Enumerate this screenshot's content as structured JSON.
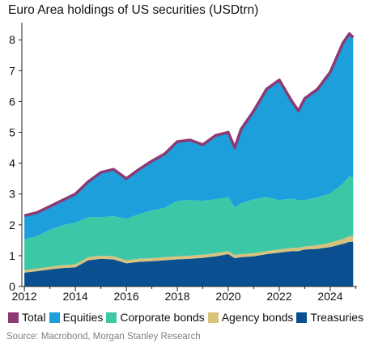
{
  "chart_data": {
    "type": "area",
    "stacked": true,
    "title": "Euro Area holdings of US securities (USDtrn)",
    "source": "Source: Macrobond, Morgan Stanley Research",
    "xlim": [
      2011.9,
      2025.05
    ],
    "ylim": [
      0,
      8.4
    ],
    "x_ticks": [
      2012,
      2014,
      2016,
      2018,
      2020,
      2022,
      2024
    ],
    "y_ticks": [
      0,
      1,
      2,
      3,
      4,
      5,
      6,
      7,
      8
    ],
    "grid": false,
    "legend_position": "bottom",
    "colors": {
      "Total": "#8b3a73",
      "Equities": "#1d9fdc",
      "Corporate bonds": "#3cc8a6",
      "Agency bonds": "#d8c27c",
      "Treasuries": "#0a5091"
    },
    "x": [
      2012.0,
      2012.5,
      2013.0,
      2013.5,
      2014.0,
      2014.5,
      2015.0,
      2015.5,
      2016.0,
      2016.5,
      2017.0,
      2017.5,
      2018.0,
      2018.5,
      2019.0,
      2019.5,
      2020.0,
      2020.25,
      2020.5,
      2021.0,
      2021.5,
      2022.0,
      2022.5,
      2022.75,
      2023.0,
      2023.5,
      2024.0,
      2024.5,
      2024.75,
      2024.9
    ],
    "series": [
      {
        "name": "Treasuries",
        "values": [
          0.45,
          0.5,
          0.55,
          0.6,
          0.62,
          0.85,
          0.9,
          0.88,
          0.75,
          0.8,
          0.82,
          0.85,
          0.88,
          0.9,
          0.93,
          0.98,
          1.05,
          0.92,
          0.95,
          0.98,
          1.05,
          1.1,
          1.15,
          1.15,
          1.2,
          1.22,
          1.28,
          1.38,
          1.45,
          1.45
        ]
      },
      {
        "name": "Agency bonds",
        "values": [
          0.08,
          0.08,
          0.09,
          0.09,
          0.1,
          0.1,
          0.1,
          0.1,
          0.1,
          0.1,
          0.1,
          0.1,
          0.1,
          0.1,
          0.1,
          0.1,
          0.1,
          0.1,
          0.1,
          0.1,
          0.1,
          0.1,
          0.1,
          0.1,
          0.1,
          0.12,
          0.14,
          0.16,
          0.18,
          0.18
        ]
      },
      {
        "name": "Corporate bonds",
        "values": [
          1.0,
          1.05,
          1.2,
          1.3,
          1.35,
          1.3,
          1.25,
          1.3,
          1.35,
          1.45,
          1.55,
          1.6,
          1.8,
          1.8,
          1.75,
          1.75,
          1.75,
          1.55,
          1.65,
          1.75,
          1.75,
          1.6,
          1.6,
          1.55,
          1.5,
          1.55,
          1.6,
          1.8,
          1.95,
          1.9
        ]
      },
      {
        "name": "Equities",
        "values": [
          0.77,
          0.77,
          0.76,
          0.81,
          0.93,
          1.15,
          1.45,
          1.52,
          1.3,
          1.45,
          1.6,
          1.75,
          1.92,
          1.95,
          1.82,
          2.07,
          2.1,
          1.93,
          2.4,
          2.87,
          3.5,
          3.9,
          3.15,
          2.9,
          3.3,
          3.5,
          3.93,
          4.56,
          4.62,
          4.55
        ]
      },
      {
        "name": "Total",
        "values": [
          2.3,
          2.4,
          2.6,
          2.8,
          3.0,
          3.4,
          3.7,
          3.8,
          3.5,
          3.8,
          4.07,
          4.3,
          4.7,
          4.75,
          4.6,
          4.9,
          5.0,
          4.5,
          5.1,
          5.7,
          6.4,
          6.7,
          6.0,
          5.7,
          6.1,
          6.4,
          6.95,
          7.9,
          8.2,
          8.08
        ]
      }
    ]
  }
}
